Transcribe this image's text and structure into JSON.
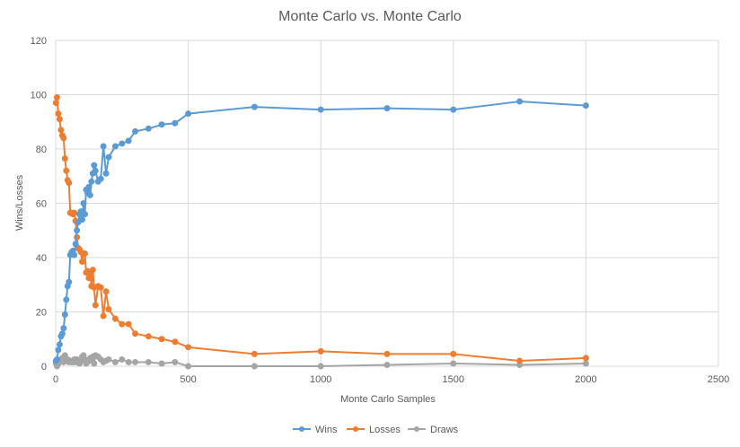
{
  "chart_data": {
    "type": "scatter",
    "title": "Monte Carlo vs. Monte Carlo",
    "xlabel": "Monte Carlo Samples",
    "ylabel": "Wins/Losses",
    "xlim": [
      0,
      2500
    ],
    "ylim": [
      0,
      120
    ],
    "x_ticks": [
      0,
      500,
      1000,
      1500,
      2000,
      2500
    ],
    "y_ticks": [
      0,
      20,
      40,
      60,
      80,
      100,
      120
    ],
    "grid": true,
    "legend_position": "bottom",
    "series": [
      {
        "name": "Wins",
        "color": "#5B9BD5",
        "points": [
          [
            1,
            2
          ],
          [
            5,
            2.5
          ],
          [
            10,
            6
          ],
          [
            15,
            8
          ],
          [
            20,
            11
          ],
          [
            25,
            12
          ],
          [
            30,
            14
          ],
          [
            35,
            19
          ],
          [
            40,
            24.5
          ],
          [
            45,
            29.5
          ],
          [
            50,
            31
          ],
          [
            55,
            41
          ],
          [
            60,
            42
          ],
          [
            65,
            42.5
          ],
          [
            70,
            41
          ],
          [
            75,
            45
          ],
          [
            80,
            50
          ],
          [
            85,
            53
          ],
          [
            90,
            56
          ],
          [
            95,
            57
          ],
          [
            100,
            54
          ],
          [
            105,
            60
          ],
          [
            110,
            56
          ],
          [
            115,
            65
          ],
          [
            120,
            64
          ],
          [
            125,
            66
          ],
          [
            130,
            63
          ],
          [
            135,
            68
          ],
          [
            140,
            71
          ],
          [
            145,
            74
          ],
          [
            150,
            72
          ],
          [
            160,
            68
          ],
          [
            170,
            69
          ],
          [
            180,
            81
          ],
          [
            190,
            71
          ],
          [
            200,
            77
          ],
          [
            225,
            81
          ],
          [
            250,
            82
          ],
          [
            275,
            83
          ],
          [
            300,
            86.5
          ],
          [
            350,
            87.5
          ],
          [
            400,
            89
          ],
          [
            450,
            89.5
          ],
          [
            500,
            93
          ],
          [
            750,
            95.5
          ],
          [
            1000,
            94.5
          ],
          [
            1250,
            95
          ],
          [
            1500,
            94.5
          ],
          [
            1750,
            97.5
          ],
          [
            2000,
            96
          ]
        ]
      },
      {
        "name": "Losses",
        "color": "#ED7D31",
        "points": [
          [
            1,
            97
          ],
          [
            5,
            99
          ],
          [
            10,
            93
          ],
          [
            15,
            91
          ],
          [
            20,
            87
          ],
          [
            25,
            85
          ],
          [
            30,
            84
          ],
          [
            35,
            76.5
          ],
          [
            40,
            72
          ],
          [
            45,
            68.5
          ],
          [
            50,
            67.5
          ],
          [
            55,
            56.5
          ],
          [
            60,
            56.5
          ],
          [
            65,
            56
          ],
          [
            70,
            56.5
          ],
          [
            75,
            53.5
          ],
          [
            80,
            47.5
          ],
          [
            85,
            43.5
          ],
          [
            90,
            43
          ],
          [
            95,
            42
          ],
          [
            100,
            38.5
          ],
          [
            105,
            41.5
          ],
          [
            110,
            41.5
          ],
          [
            115,
            34.5
          ],
          [
            120,
            35
          ],
          [
            125,
            32.5
          ],
          [
            130,
            34
          ],
          [
            135,
            29.5
          ],
          [
            140,
            35.5
          ],
          [
            145,
            29
          ],
          [
            150,
            22.5
          ],
          [
            160,
            29.5
          ],
          [
            170,
            29
          ],
          [
            180,
            18.5
          ],
          [
            190,
            27.5
          ],
          [
            200,
            21
          ],
          [
            225,
            17.5
          ],
          [
            250,
            15.5
          ],
          [
            275,
            15.5
          ],
          [
            300,
            12
          ],
          [
            350,
            11
          ],
          [
            400,
            10
          ],
          [
            450,
            9
          ],
          [
            500,
            7
          ],
          [
            750,
            4.5
          ],
          [
            1000,
            5.5
          ],
          [
            1250,
            4.5
          ],
          [
            1500,
            4.5
          ],
          [
            1750,
            2
          ],
          [
            2000,
            3
          ]
        ]
      },
      {
        "name": "Draws",
        "color": "#A5A5A5",
        "points": [
          [
            1,
            1
          ],
          [
            5,
            0
          ],
          [
            10,
            1
          ],
          [
            15,
            2
          ],
          [
            20,
            2.5
          ],
          [
            25,
            3
          ],
          [
            30,
            1.5
          ],
          [
            35,
            4
          ],
          [
            40,
            2
          ],
          [
            45,
            2.5
          ],
          [
            50,
            1.5
          ],
          [
            55,
            2
          ],
          [
            60,
            1.5
          ],
          [
            65,
            1.5
          ],
          [
            70,
            2.5
          ],
          [
            75,
            1.5
          ],
          [
            80,
            2.5
          ],
          [
            85,
            1.5
          ],
          [
            90,
            1
          ],
          [
            95,
            2
          ],
          [
            100,
            3.5
          ],
          [
            105,
            4
          ],
          [
            110,
            2.5
          ],
          [
            115,
            1
          ],
          [
            120,
            1.5
          ],
          [
            125,
            2
          ],
          [
            130,
            3
          ],
          [
            135,
            2.5
          ],
          [
            140,
            3.5
          ],
          [
            145,
            1
          ],
          [
            150,
            4
          ],
          [
            160,
            3.5
          ],
          [
            170,
            2.5
          ],
          [
            180,
            1.5
          ],
          [
            190,
            2
          ],
          [
            200,
            2.5
          ],
          [
            225,
            1.5
          ],
          [
            250,
            2.5
          ],
          [
            275,
            1.5
          ],
          [
            300,
            1.5
          ],
          [
            350,
            1.5
          ],
          [
            400,
            1
          ],
          [
            450,
            1.5
          ],
          [
            500,
            0
          ],
          [
            750,
            0
          ],
          [
            1000,
            0
          ],
          [
            1250,
            0.5
          ],
          [
            1500,
            1
          ],
          [
            1750,
            0.5
          ],
          [
            2000,
            1
          ]
        ]
      }
    ]
  }
}
